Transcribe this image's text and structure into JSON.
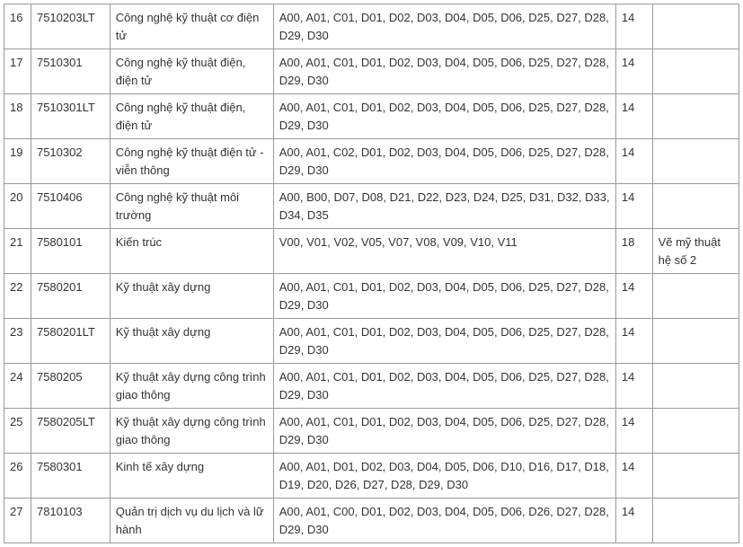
{
  "rows": [
    {
      "idx": "16",
      "code": "7510203LT",
      "name": "Công nghệ kỹ thuật cơ điện tử",
      "groups": "A00, A01, C01, D01, D02, D03, D04, D05, D06, D25, D27, D28, D29, D30",
      "score": "14",
      "note": ""
    },
    {
      "idx": "17",
      "code": "7510301",
      "name": "Công nghệ kỹ thuật điện, điện tử",
      "groups": "A00, A01, C01, D01, D02, D03, D04, D05, D06, D25, D27, D28, D29, D30",
      "score": "14",
      "note": ""
    },
    {
      "idx": "18",
      "code": "7510301LT",
      "name": "Công nghệ kỹ thuật điện, điện tử",
      "groups": "A00, A01, C01, D01, D02, D03, D04, D05, D06, D25, D27, D28, D29, D30",
      "score": "14",
      "note": ""
    },
    {
      "idx": "19",
      "code": "7510302",
      "name": "Công nghệ kỹ thuật điện tử - viễn thông",
      "groups": "A00, A01, C02, D01, D02, D03, D04, D05, D06, D25, D27, D28, D29, D30",
      "score": "14",
      "note": ""
    },
    {
      "idx": "20",
      "code": "7510406",
      "name": "Công nghệ kỹ thuật môi trường",
      "groups": "A00, B00, D07, D08, D21, D22, D23, D24, D25, D31, D32, D33, D34, D35",
      "score": "14",
      "note": ""
    },
    {
      "idx": "21",
      "code": "7580101",
      "name": "Kiến trúc",
      "groups": "V00, V01, V02, V05, V07, V08, V09, V10, V11",
      "score": "18",
      "note": "Vẽ mỹ thuật hệ số 2"
    },
    {
      "idx": "22",
      "code": "7580201",
      "name": "Kỹ thuật xây dựng",
      "groups": "A00, A01, C01, D01, D02, D03, D04, D05, D06, D25, D27, D28, D29, D30",
      "score": "14",
      "note": ""
    },
    {
      "idx": "23",
      "code": "7580201LT",
      "name": "Kỹ thuật xây dựng",
      "groups": "A00, A01, C01, D01, D02, D03, D04, D05, D06, D25, D27, D28, D29, D30",
      "score": "14",
      "note": ""
    },
    {
      "idx": "24",
      "code": "7580205",
      "name": "Kỹ thuật xây dựng công trình giao thông",
      "groups": "A00, A01, C01, D01, D02, D03, D04, D05, D06, D25, D27, D28, D29, D30",
      "score": "14",
      "note": ""
    },
    {
      "idx": "25",
      "code": "7580205LT",
      "name": "Kỹ thuật xây dựng công trình giao thông",
      "groups": "A00, A01, C01, D01, D02, D03, D04, D05, D06, D25, D27, D28, D29, D30",
      "score": "14",
      "note": ""
    },
    {
      "idx": "26",
      "code": "7580301",
      "name": "Kinh tế xây dựng",
      "groups": "A00, A01, D01, D02, D03, D04, D05, D06, D10, D16, D17, D18, D19, D20, D26, D27, D28, D29, D30",
      "score": "14",
      "note": ""
    },
    {
      "idx": "27",
      "code": "7810103",
      "name": "Quản trị dịch vụ du lịch và lữ hành",
      "groups": "A00, A01, C00, D01, D02, D03, D04, D05, D06, D26, D27, D28, D29, D30",
      "score": "14",
      "note": ""
    }
  ]
}
